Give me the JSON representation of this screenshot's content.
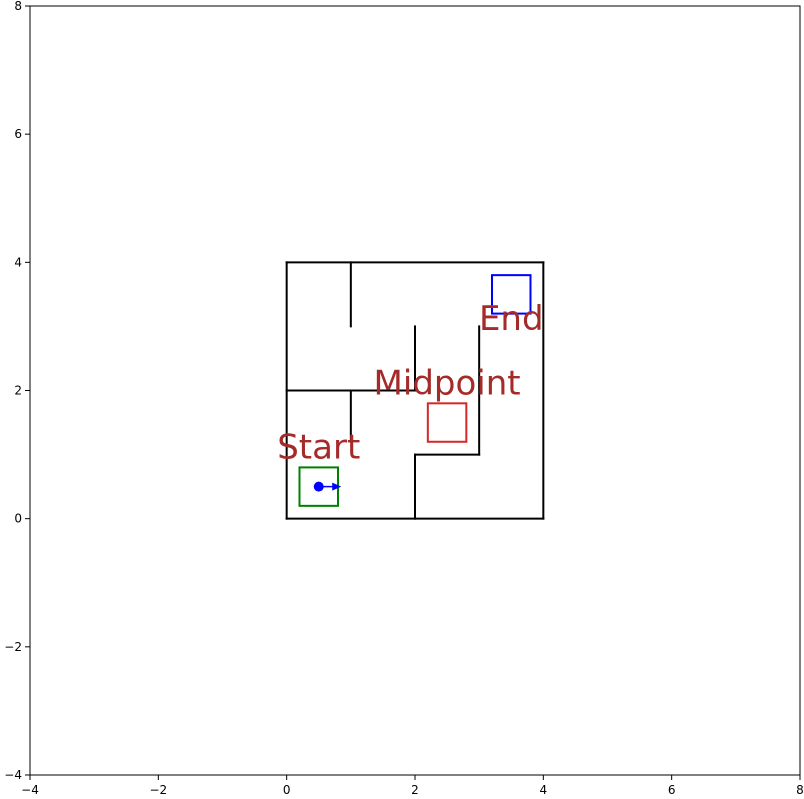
{
  "chart_data": {
    "type": "scatter",
    "title": "",
    "xlabel": "",
    "ylabel": "",
    "xlim": [
      -4,
      8
    ],
    "ylim": [
      -4,
      8
    ],
    "grid": false,
    "xticks": [
      -4,
      -2,
      0,
      2,
      4,
      6,
      8
    ],
    "yticks": [
      -4,
      -2,
      0,
      2,
      4,
      6,
      8
    ],
    "xtick_labels": [
      "−4",
      "−2",
      "0",
      "2",
      "4",
      "6",
      "8"
    ],
    "ytick_labels": [
      "−4",
      "−2",
      "0",
      "2",
      "4",
      "6",
      "8"
    ],
    "walls": [
      [
        [
          0,
          0
        ],
        [
          4,
          0
        ]
      ],
      [
        [
          4,
          0
        ],
        [
          4,
          4
        ]
      ],
      [
        [
          4,
          4
        ],
        [
          0,
          4
        ]
      ],
      [
        [
          0,
          4
        ],
        [
          0,
          0
        ]
      ],
      [
        [
          1,
          4
        ],
        [
          1,
          3
        ]
      ],
      [
        [
          0,
          2
        ],
        [
          2,
          2
        ]
      ],
      [
        [
          1,
          2
        ],
        [
          1,
          1.2
        ]
      ],
      [
        [
          2,
          3
        ],
        [
          2,
          2
        ]
      ],
      [
        [
          3,
          3
        ],
        [
          3,
          1
        ]
      ],
      [
        [
          3,
          1
        ],
        [
          2,
          1
        ]
      ],
      [
        [
          2,
          1
        ],
        [
          2,
          0
        ]
      ]
    ],
    "boxes": [
      {
        "name": "start-box",
        "x": 0.2,
        "y": 0.2,
        "width": 0.6,
        "height": 0.6,
        "color": "#008000"
      },
      {
        "name": "midpoint-box",
        "x": 2.2,
        "y": 1.2,
        "width": 0.6,
        "height": 0.6,
        "color": "#d62728"
      },
      {
        "name": "end-box",
        "x": 3.2,
        "y": 3.2,
        "width": 0.6,
        "height": 0.6,
        "color": "#0000ff"
      }
    ],
    "labels": [
      {
        "name": "start-label",
        "text": "Start",
        "x": 0.5,
        "y": 0.8,
        "color": "#a52a2a"
      },
      {
        "name": "midpoint-label",
        "text": "Midpoint",
        "x": 2.5,
        "y": 1.8,
        "color": "#a52a2a"
      },
      {
        "name": "end-label",
        "text": "End",
        "x": 3.5,
        "y": 2.8,
        "color": "#a52a2a"
      }
    ],
    "agent": {
      "x": 0.5,
      "y": 0.5,
      "heading_dx": 0.35,
      "heading_dy": 0,
      "color": "#0000ff"
    }
  }
}
